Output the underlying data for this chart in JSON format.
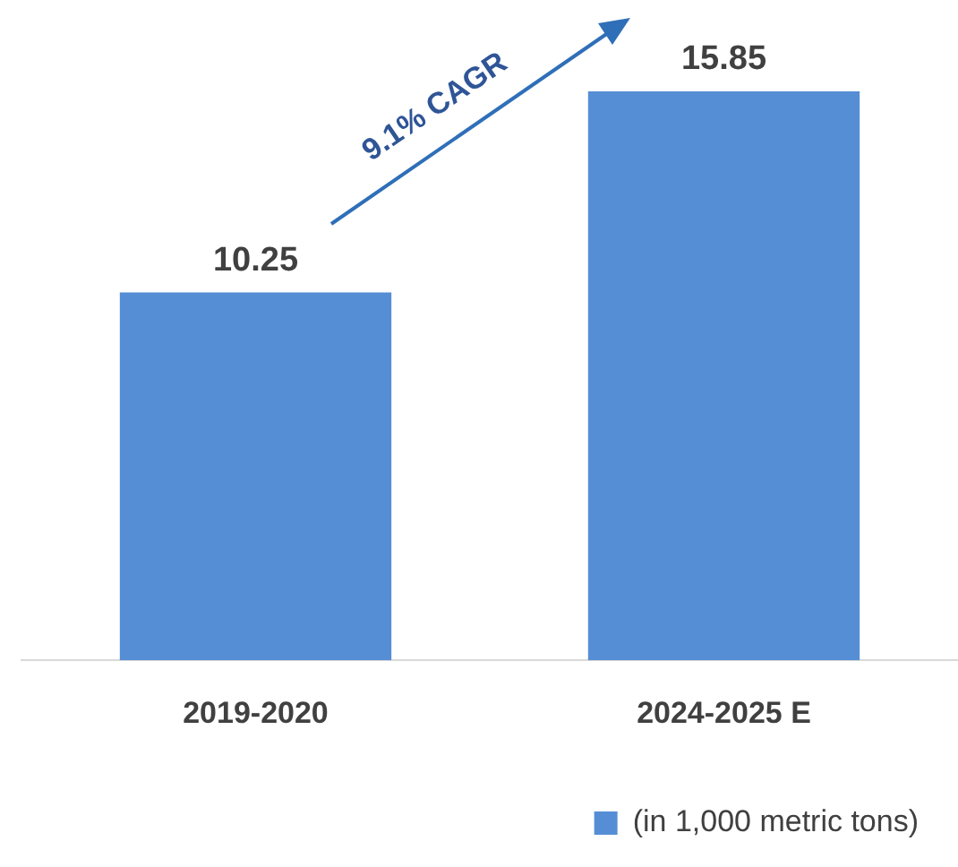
{
  "chart_data": {
    "type": "bar",
    "categories": [
      "2019-2020",
      "2024-2025 E"
    ],
    "series": [
      {
        "name": "(in 1,000 metric tons)",
        "color": "#558ed5",
        "values": [
          10.25,
          15.85
        ]
      }
    ],
    "data_labels": true,
    "grid": false,
    "legend": "bottom right",
    "annotations": [
      "9.1% CAGR"
    ]
  }
}
